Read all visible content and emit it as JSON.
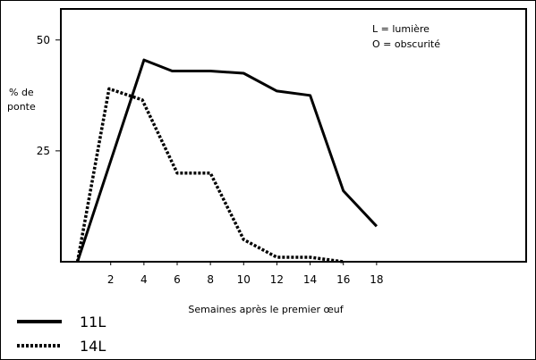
{
  "chart_data": {
    "type": "line",
    "xlabel": "Semaines après le premier œuf",
    "ylabel_line1": "% de",
    "ylabel_line2": "ponte",
    "x_ticks": [
      2,
      4,
      6,
      8,
      10,
      12,
      14,
      16,
      18
    ],
    "y_ticks": [
      25,
      50
    ],
    "xlim": [
      -1,
      27
    ],
    "ylim": [
      0,
      57
    ],
    "annotations": [
      "L = lumière",
      "O = obscurité"
    ],
    "legend_position": "bottom-left",
    "series": [
      {
        "name": "11L",
        "style": "solid",
        "color": "#000000",
        "x": [
          0,
          4,
          5.7,
          8,
          10,
          12,
          14,
          16,
          18
        ],
        "y": [
          0,
          45.5,
          43,
          43,
          42.5,
          38.5,
          37.5,
          16,
          8
        ]
      },
      {
        "name": "14L",
        "style": "dotted",
        "color": "#000000",
        "x": [
          0,
          1.9,
          3.9,
          6,
          8,
          10,
          12,
          14,
          16
        ],
        "y": [
          0,
          39,
          36.5,
          20,
          20,
          5,
          1,
          1,
          0
        ]
      }
    ]
  }
}
